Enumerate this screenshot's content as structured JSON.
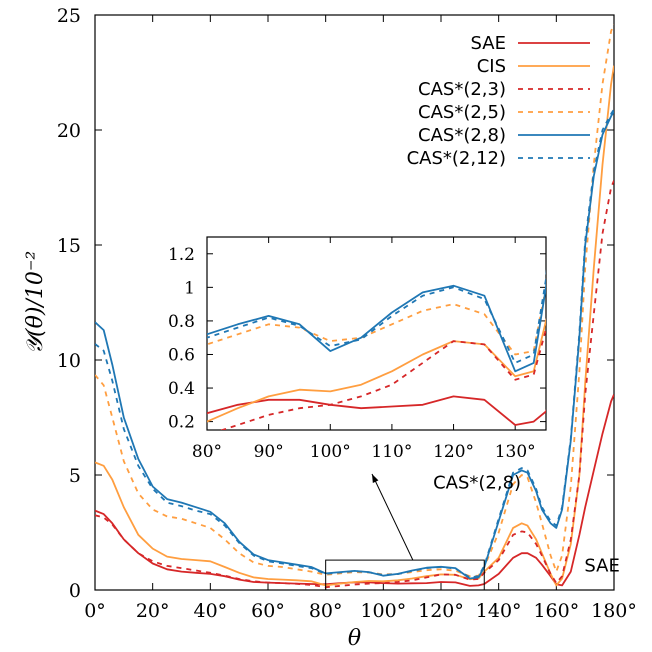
{
  "chart_data": {
    "type": "line",
    "xlabel": "θ",
    "ylabel": "𝒴(θ)/10⁻²",
    "xlim": [
      0,
      180
    ],
    "ylim": [
      0,
      25
    ],
    "x_ticks": [
      "0°",
      "20°",
      "40°",
      "60°",
      "80°",
      "100°",
      "120°",
      "140°",
      "160°",
      "180°"
    ],
    "y_ticks": [
      "0",
      "5",
      "10",
      "15",
      "20",
      "25"
    ],
    "legend_position": "top-right",
    "series": [
      {
        "name": "SAE",
        "color": "#d62728",
        "style": "solid",
        "x": [
          0,
          3,
          6,
          10,
          15,
          20,
          25,
          30,
          35,
          40,
          45,
          50,
          55,
          60,
          65,
          70,
          75,
          80,
          85,
          90,
          95,
          100,
          105,
          110,
          115,
          120,
          125,
          130,
          133,
          135,
          140,
          145,
          148,
          150,
          153,
          155,
          158,
          160,
          162,
          165,
          168,
          170,
          173,
          176,
          179,
          180
        ],
        "y": [
          3.45,
          3.3,
          2.9,
          2.2,
          1.6,
          1.15,
          0.9,
          0.8,
          0.75,
          0.7,
          0.6,
          0.45,
          0.35,
          0.32,
          0.3,
          0.28,
          0.26,
          0.25,
          0.3,
          0.33,
          0.33,
          0.3,
          0.28,
          0.29,
          0.3,
          0.35,
          0.33,
          0.18,
          0.2,
          0.26,
          0.7,
          1.4,
          1.6,
          1.6,
          1.4,
          1.1,
          0.6,
          0.25,
          0.2,
          0.8,
          2.4,
          3.6,
          5.2,
          6.8,
          8.2,
          8.5
        ]
      },
      {
        "name": "CIS",
        "color": "#ff9e40",
        "style": "solid",
        "x": [
          0,
          3,
          6,
          10,
          15,
          20,
          25,
          30,
          35,
          40,
          45,
          50,
          55,
          60,
          65,
          70,
          75,
          80,
          85,
          90,
          95,
          100,
          105,
          110,
          115,
          120,
          125,
          130,
          133,
          135,
          140,
          145,
          148,
          150,
          153,
          155,
          158,
          160,
          162,
          165,
          168,
          170,
          173,
          176,
          179,
          180
        ],
        "y": [
          5.55,
          5.4,
          4.8,
          3.6,
          2.4,
          1.8,
          1.45,
          1.35,
          1.3,
          1.25,
          1.0,
          0.75,
          0.55,
          0.48,
          0.45,
          0.42,
          0.38,
          0.2,
          0.28,
          0.35,
          0.39,
          0.38,
          0.42,
          0.5,
          0.6,
          0.68,
          0.66,
          0.47,
          0.5,
          0.8,
          1.4,
          2.7,
          2.9,
          2.8,
          2.2,
          1.6,
          0.7,
          0.2,
          0.5,
          2.0,
          5.0,
          9.0,
          14.0,
          18.5,
          22.0,
          22.8
        ]
      },
      {
        "name": "CAS*(2,3)",
        "color": "#d62728",
        "style": "dashed",
        "x": [
          0,
          3,
          6,
          10,
          15,
          20,
          25,
          30,
          35,
          40,
          45,
          50,
          55,
          60,
          65,
          70,
          75,
          80,
          85,
          90,
          95,
          100,
          105,
          110,
          115,
          120,
          125,
          130,
          133,
          135,
          140,
          145,
          148,
          150,
          153,
          155,
          158,
          160,
          162,
          165,
          168,
          170,
          173,
          176,
          179,
          180
        ],
        "y": [
          3.25,
          3.15,
          2.85,
          2.2,
          1.6,
          1.25,
          1.05,
          0.95,
          0.85,
          0.75,
          0.62,
          0.48,
          0.38,
          0.32,
          0.3,
          0.27,
          0.22,
          0.12,
          0.18,
          0.24,
          0.28,
          0.3,
          0.35,
          0.42,
          0.55,
          0.68,
          0.66,
          0.45,
          0.48,
          0.75,
          1.3,
          2.4,
          2.55,
          2.5,
          2.0,
          1.5,
          0.7,
          0.3,
          0.6,
          2.2,
          5.0,
          8.5,
          12.0,
          15.5,
          17.5,
          17.8
        ]
      },
      {
        "name": "CAS*(2,5)",
        "color": "#ff9e40",
        "style": "dashed",
        "x": [
          0,
          3,
          6,
          10,
          15,
          20,
          25,
          30,
          35,
          40,
          45,
          50,
          55,
          60,
          65,
          70,
          75,
          80,
          85,
          90,
          95,
          100,
          105,
          110,
          115,
          120,
          125,
          130,
          133,
          135,
          140,
          145,
          148,
          150,
          153,
          155,
          158,
          160,
          162,
          165,
          168,
          170,
          173,
          176,
          179,
          180
        ],
        "y": [
          9.35,
          8.9,
          7.5,
          5.6,
          4.2,
          3.5,
          3.2,
          3.1,
          2.9,
          2.7,
          2.2,
          1.6,
          1.2,
          1.05,
          1.0,
          0.9,
          0.8,
          0.66,
          0.72,
          0.78,
          0.76,
          0.68,
          0.7,
          0.78,
          0.86,
          0.9,
          0.84,
          0.6,
          0.62,
          1.0,
          2.5,
          4.6,
          5.0,
          4.9,
          3.8,
          2.9,
          1.5,
          0.8,
          1.5,
          4.5,
          9.5,
          14.0,
          18.5,
          22.0,
          24.3,
          24.6
        ]
      },
      {
        "name": "CAS*(2,8)",
        "color": "#1f77b4",
        "style": "solid",
        "x": [
          0,
          3,
          6,
          10,
          15,
          20,
          25,
          30,
          35,
          40,
          45,
          50,
          55,
          60,
          65,
          70,
          75,
          80,
          85,
          90,
          95,
          100,
          105,
          110,
          115,
          120,
          125,
          130,
          133,
          135,
          140,
          145,
          148,
          150,
          153,
          155,
          158,
          160,
          162,
          165,
          168,
          170,
          173,
          176,
          179,
          180
        ],
        "y": [
          11.65,
          11.3,
          9.8,
          7.5,
          5.7,
          4.5,
          3.95,
          3.8,
          3.6,
          3.4,
          2.9,
          2.1,
          1.55,
          1.3,
          1.2,
          1.1,
          1.0,
          0.72,
          0.78,
          0.83,
          0.78,
          0.62,
          0.7,
          0.85,
          0.97,
          1.01,
          0.95,
          0.5,
          0.55,
          1.0,
          3.0,
          5.0,
          5.2,
          5.1,
          4.3,
          3.5,
          2.9,
          2.7,
          3.5,
          6.5,
          11.0,
          15.0,
          18.0,
          19.8,
          20.6,
          20.8
        ]
      },
      {
        "name": "CAS*(2,12)",
        "color": "#1f77b4",
        "style": "dashed",
        "x": [
          0,
          3,
          6,
          10,
          15,
          20,
          25,
          30,
          35,
          40,
          45,
          50,
          55,
          60,
          65,
          70,
          75,
          80,
          85,
          90,
          95,
          100,
          105,
          110,
          115,
          120,
          125,
          130,
          133,
          135,
          140,
          145,
          148,
          150,
          153,
          155,
          158,
          160,
          162,
          165,
          168,
          170,
          173,
          176,
          179,
          180
        ],
        "y": [
          10.7,
          10.4,
          9.1,
          7.0,
          5.4,
          4.4,
          3.8,
          3.65,
          3.45,
          3.3,
          2.8,
          2.05,
          1.5,
          1.25,
          1.15,
          1.05,
          0.95,
          0.7,
          0.76,
          0.82,
          0.77,
          0.65,
          0.69,
          0.83,
          0.95,
          1.0,
          0.93,
          0.55,
          0.6,
          1.05,
          3.1,
          5.1,
          5.3,
          5.2,
          4.4,
          3.6,
          3.0,
          2.8,
          3.6,
          6.6,
          11.2,
          15.2,
          18.2,
          20.0,
          20.7,
          20.9
        ]
      }
    ],
    "inset": {
      "xlim": [
        80,
        135
      ],
      "ylim": [
        0.15,
        1.3
      ],
      "x_ticks": [
        "80°",
        "90°",
        "100°",
        "110°",
        "120°",
        "130°"
      ],
      "y_ticks": [
        "0.2",
        "0.4",
        "0.6",
        "0.8",
        "1",
        "1.2"
      ],
      "zoom_region": {
        "x": [
          80,
          135
        ],
        "y": [
          0,
          1.3
        ]
      }
    },
    "annotations": [
      {
        "text": "CAS*(2,8)",
        "x": 145,
        "y": 3.8
      },
      {
        "text": "SAE",
        "x": 168,
        "y": 0.8
      }
    ]
  }
}
